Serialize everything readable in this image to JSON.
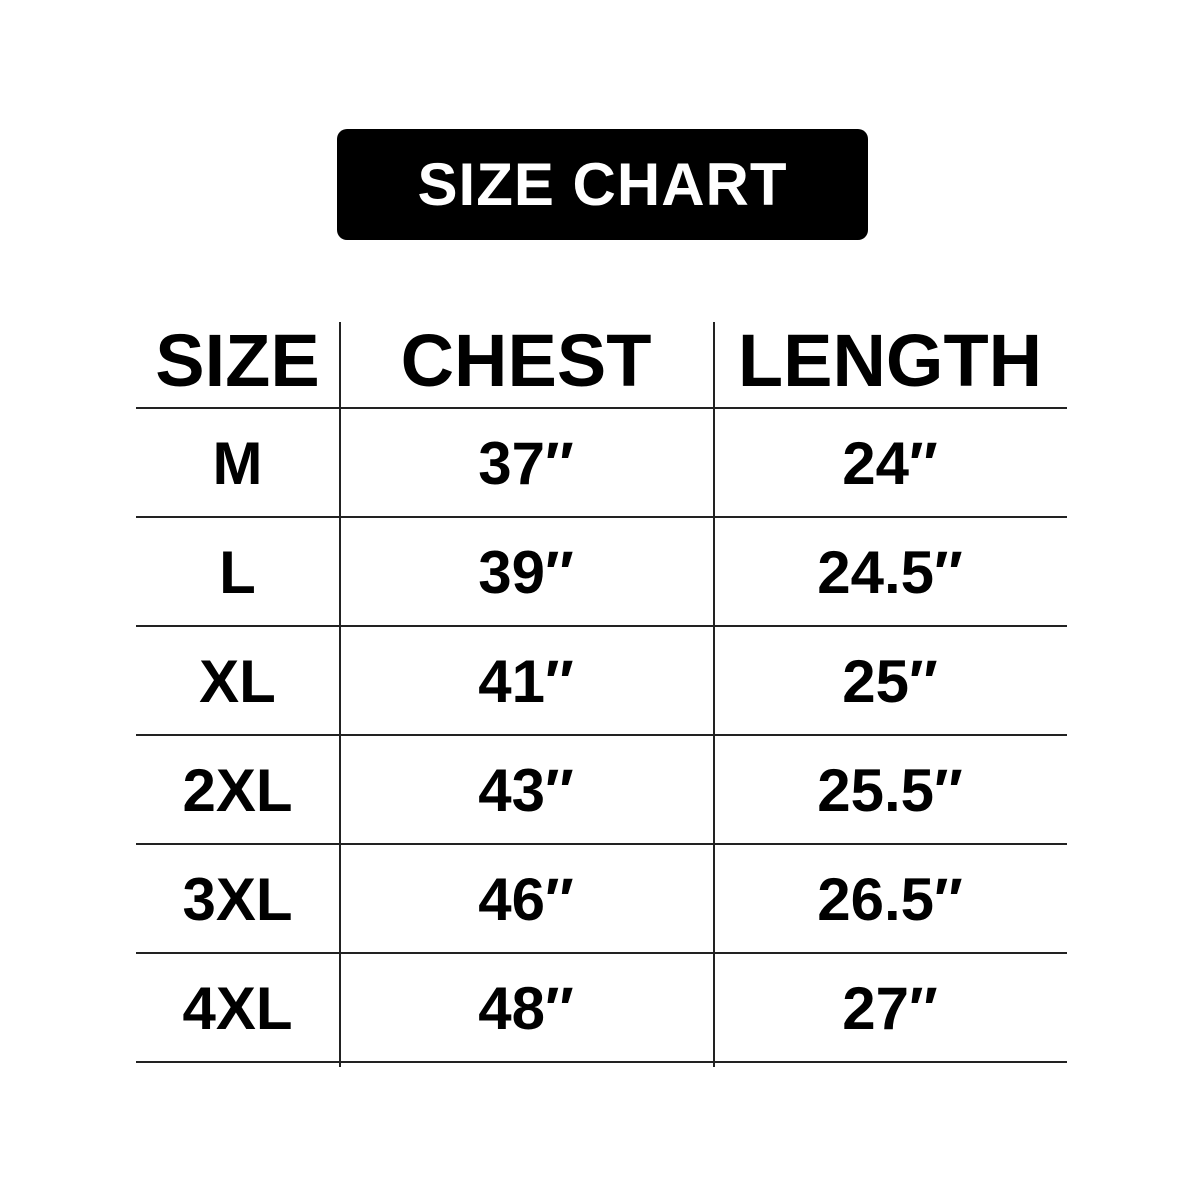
{
  "title": "SIZE CHART",
  "headers": [
    "SIZE",
    "CHEST",
    "LENGTH"
  ],
  "rows": [
    [
      "M",
      "37″",
      "24″"
    ],
    [
      "L",
      "39″",
      "24.5″"
    ],
    [
      "XL",
      "41″",
      "25″"
    ],
    [
      "2XL",
      "43″",
      "25.5″"
    ],
    [
      "3XL",
      "46″",
      "26.5″"
    ],
    [
      "4XL",
      "48″",
      "27″"
    ]
  ]
}
